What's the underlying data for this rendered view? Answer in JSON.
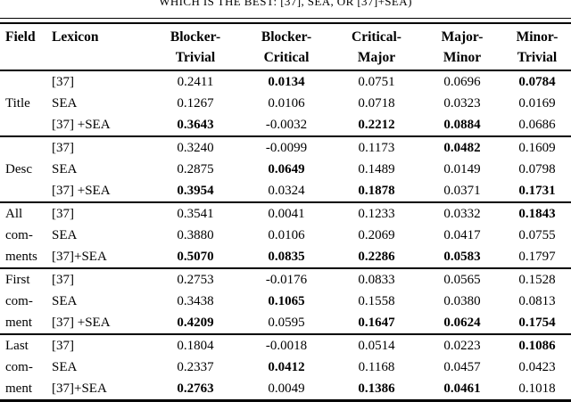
{
  "caption": "WHICH IS THE BEST: [37], SEA, OR [37]+SEA)",
  "table": {
    "col_headers": [
      "Field",
      "Lexicon",
      "Blocker-\nTrivial",
      "Blocker-\nCritical",
      "Critical-\nMajor",
      "Major-\nMinor",
      "Minor-\nTrivial"
    ],
    "groups": [
      {
        "field": "Title",
        "rows": [
          {
            "lexicon": "[37]",
            "values": [
              "0.2411",
              "0.0134",
              "0.0751",
              "0.0696",
              "0.0784"
            ],
            "bold": [
              false,
              true,
              false,
              false,
              true
            ]
          },
          {
            "lexicon": "SEA",
            "values": [
              "0.1267",
              "0.0106",
              "0.0718",
              "0.0323",
              "0.0169"
            ],
            "bold": [
              false,
              false,
              false,
              false,
              false
            ]
          },
          {
            "lexicon": "[37] +SEA",
            "values": [
              "0.3643",
              "-0.0032",
              "0.2212",
              "0.0884",
              "0.0686"
            ],
            "bold": [
              true,
              false,
              true,
              true,
              false
            ]
          }
        ]
      },
      {
        "field": "Desc",
        "rows": [
          {
            "lexicon": "[37]",
            "values": [
              "0.3240",
              "-0.0099",
              "0.1173",
              "0.0482",
              "0.1609"
            ],
            "bold": [
              false,
              false,
              false,
              true,
              false
            ]
          },
          {
            "lexicon": "SEA",
            "values": [
              "0.2875",
              "0.0649",
              "0.1489",
              "0.0149",
              "0.0798"
            ],
            "bold": [
              false,
              true,
              false,
              false,
              false
            ]
          },
          {
            "lexicon": "[37] +SEA",
            "values": [
              "0.3954",
              "0.0324",
              "0.1878",
              "0.0371",
              "0.1731"
            ],
            "bold": [
              true,
              false,
              true,
              false,
              true
            ]
          }
        ]
      },
      {
        "field": "All\ncom-\nments",
        "rows": [
          {
            "lexicon": "[37]",
            "values": [
              "0.3541",
              "0.0041",
              "0.1233",
              "0.0332",
              "0.1843"
            ],
            "bold": [
              false,
              false,
              false,
              false,
              true
            ]
          },
          {
            "lexicon": "SEA",
            "values": [
              "0.3880",
              "0.0106",
              "0.2069",
              "0.0417",
              "0.0755"
            ],
            "bold": [
              false,
              false,
              false,
              false,
              false
            ]
          },
          {
            "lexicon": "[37]+SEA",
            "values": [
              "0.5070",
              "0.0835",
              "0.2286",
              "0.0583",
              "0.1797"
            ],
            "bold": [
              true,
              true,
              true,
              true,
              false
            ]
          }
        ]
      },
      {
        "field": "First\ncom-\nment",
        "rows": [
          {
            "lexicon": "[37]",
            "values": [
              "0.2753",
              "-0.0176",
              "0.0833",
              "0.0565",
              "0.1528"
            ],
            "bold": [
              false,
              false,
              false,
              false,
              false
            ]
          },
          {
            "lexicon": "SEA",
            "values": [
              "0.3438",
              "0.1065",
              "0.1558",
              "0.0380",
              "0.0813"
            ],
            "bold": [
              false,
              true,
              false,
              false,
              false
            ]
          },
          {
            "lexicon": "[37] +SEA",
            "values": [
              "0.4209",
              "0.0595",
              "0.1647",
              "0.0624",
              "0.1754"
            ],
            "bold": [
              true,
              false,
              true,
              true,
              true
            ]
          }
        ]
      },
      {
        "field": "Last\ncom-\nment",
        "rows": [
          {
            "lexicon": "[37]",
            "values": [
              "0.1804",
              "-0.0018",
              "0.0514",
              "0.0223",
              "0.1086"
            ],
            "bold": [
              false,
              false,
              false,
              false,
              true
            ]
          },
          {
            "lexicon": "SEA",
            "values": [
              "0.2337",
              "0.0412",
              "0.1168",
              "0.0457",
              "0.0423"
            ],
            "bold": [
              false,
              true,
              false,
              false,
              false
            ]
          },
          {
            "lexicon": "[37]+SEA",
            "values": [
              "0.2763",
              "0.0049",
              "0.1386",
              "0.0461",
              "0.1018"
            ],
            "bold": [
              true,
              false,
              true,
              true,
              false
            ]
          }
        ]
      }
    ]
  }
}
